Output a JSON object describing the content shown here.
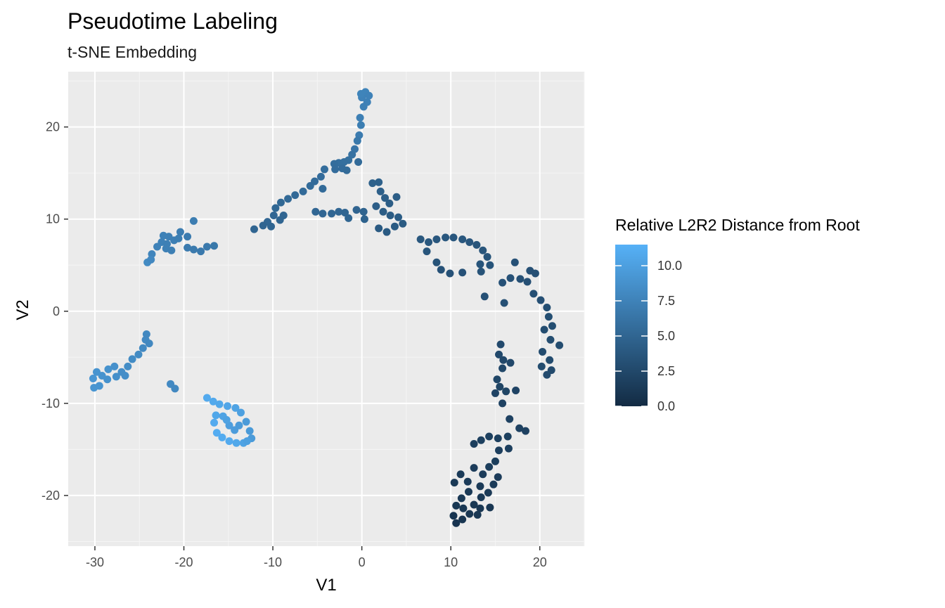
{
  "chart_data": {
    "type": "scatter",
    "title": "Pseudotime Labeling",
    "subtitle": "t-SNE Embedding",
    "xlabel": "V1",
    "ylabel": "V2",
    "xlim": [
      -33,
      25
    ],
    "ylim": [
      -25.5,
      26
    ],
    "x_ticks": [
      -30,
      -20,
      -10,
      0,
      10,
      20
    ],
    "y_ticks": [
      -20,
      -10,
      0,
      10,
      20
    ],
    "grid": true,
    "legend": {
      "title": "Relative L2R2 Distance from Root",
      "placement": "right",
      "ticks": [
        0.0,
        2.5,
        5.0,
        7.5,
        10.0
      ],
      "tick_labels": [
        "0.0",
        "2.5",
        "5.0",
        "7.5",
        "10.0"
      ],
      "range": [
        0,
        11.5
      ],
      "low_color": "#132b43",
      "high_color": "#56b1f7"
    },
    "colors": {
      "panel_background": "#ebebeb",
      "grid_major": "#ffffff",
      "grid_minor": "#f5f5f5"
    },
    "points": [
      {
        "x": 0.4,
        "y": 23.8,
        "c": 7.6
      },
      {
        "x": 0.0,
        "y": 23.2,
        "c": 7.5
      },
      {
        "x": 0.6,
        "y": 22.7,
        "c": 7.4
      },
      {
        "x": 0.2,
        "y": 22.2,
        "c": 7.3
      },
      {
        "x": -0.1,
        "y": 23.6,
        "c": 7.6
      },
      {
        "x": 0.8,
        "y": 23.4,
        "c": 7.5
      },
      {
        "x": -0.2,
        "y": 21.0,
        "c": 7.2
      },
      {
        "x": -0.1,
        "y": 20.2,
        "c": 7.1
      },
      {
        "x": -0.3,
        "y": 19.1,
        "c": 6.9
      },
      {
        "x": -0.5,
        "y": 18.5,
        "c": 6.6
      },
      {
        "x": -0.8,
        "y": 17.6,
        "c": 6.3
      },
      {
        "x": -1.1,
        "y": 17.0,
        "c": 6.1
      },
      {
        "x": -1.5,
        "y": 16.4,
        "c": 5.9
      },
      {
        "x": -2.0,
        "y": 16.2,
        "c": 5.8
      },
      {
        "x": -2.6,
        "y": 16.1,
        "c": 5.8
      },
      {
        "x": -3.1,
        "y": 16.0,
        "c": 5.7
      },
      {
        "x": -3.0,
        "y": 15.4,
        "c": 5.6
      },
      {
        "x": -2.2,
        "y": 15.5,
        "c": 5.6
      },
      {
        "x": -1.7,
        "y": 15.3,
        "c": 5.5
      },
      {
        "x": -0.4,
        "y": 16.2,
        "c": 5.4
      },
      {
        "x": -4.2,
        "y": 15.4,
        "c": 5.7
      },
      {
        "x": -4.6,
        "y": 14.6,
        "c": 5.6
      },
      {
        "x": -5.3,
        "y": 14.1,
        "c": 5.5
      },
      {
        "x": -5.8,
        "y": 13.6,
        "c": 5.5
      },
      {
        "x": -4.4,
        "y": 13.3,
        "c": 5.4
      },
      {
        "x": -6.6,
        "y": 13.0,
        "c": 5.4
      },
      {
        "x": -7.5,
        "y": 12.6,
        "c": 5.3
      },
      {
        "x": -8.3,
        "y": 12.2,
        "c": 5.3
      },
      {
        "x": -9.1,
        "y": 11.8,
        "c": 5.2
      },
      {
        "x": -9.7,
        "y": 11.2,
        "c": 5.2
      },
      {
        "x": -9.9,
        "y": 10.4,
        "c": 5.1
      },
      {
        "x": -10.6,
        "y": 9.7,
        "c": 5.1
      },
      {
        "x": -11.1,
        "y": 9.3,
        "c": 5.0
      },
      {
        "x": -12.1,
        "y": 8.9,
        "c": 5.0
      },
      {
        "x": -10.2,
        "y": 9.2,
        "c": 5.0
      },
      {
        "x": -9.2,
        "y": 9.9,
        "c": 5.0
      },
      {
        "x": -8.8,
        "y": 10.4,
        "c": 5.0
      },
      {
        "x": -5.2,
        "y": 10.8,
        "c": 5.1
      },
      {
        "x": -4.4,
        "y": 10.6,
        "c": 5.1
      },
      {
        "x": -3.4,
        "y": 10.6,
        "c": 5.1
      },
      {
        "x": -2.6,
        "y": 10.8,
        "c": 5.1
      },
      {
        "x": -1.9,
        "y": 10.7,
        "c": 5.0
      },
      {
        "x": -1.5,
        "y": 10.1,
        "c": 5.0
      },
      {
        "x": -0.6,
        "y": 11.0,
        "c": 4.9
      },
      {
        "x": 0.2,
        "y": 10.8,
        "c": 4.8
      },
      {
        "x": 0.3,
        "y": 10.0,
        "c": 4.7
      },
      {
        "x": 1.2,
        "y": 13.9,
        "c": 4.6
      },
      {
        "x": 1.9,
        "y": 14.0,
        "c": 4.6
      },
      {
        "x": 2.1,
        "y": 13.0,
        "c": 4.5
      },
      {
        "x": 2.6,
        "y": 12.3,
        "c": 4.4
      },
      {
        "x": 3.1,
        "y": 11.7,
        "c": 4.3
      },
      {
        "x": 3.9,
        "y": 12.4,
        "c": 4.3
      },
      {
        "x": 1.6,
        "y": 11.4,
        "c": 4.4
      },
      {
        "x": 2.4,
        "y": 10.8,
        "c": 4.3
      },
      {
        "x": 3.2,
        "y": 10.4,
        "c": 4.2
      },
      {
        "x": 4.1,
        "y": 10.2,
        "c": 4.2
      },
      {
        "x": 3.7,
        "y": 9.2,
        "c": 4.1
      },
      {
        "x": 4.6,
        "y": 9.5,
        "c": 4.1
      },
      {
        "x": 2.8,
        "y": 8.6,
        "c": 4.0
      },
      {
        "x": 1.9,
        "y": 9.0,
        "c": 4.0
      },
      {
        "x": 6.6,
        "y": 7.8,
        "c": 3.8
      },
      {
        "x": 7.5,
        "y": 7.5,
        "c": 3.8
      },
      {
        "x": 8.4,
        "y": 7.8,
        "c": 3.8
      },
      {
        "x": 9.4,
        "y": 8.0,
        "c": 3.8
      },
      {
        "x": 10.3,
        "y": 8.0,
        "c": 3.8
      },
      {
        "x": 11.3,
        "y": 7.8,
        "c": 3.8
      },
      {
        "x": 12.1,
        "y": 7.5,
        "c": 3.7
      },
      {
        "x": 12.9,
        "y": 7.2,
        "c": 3.6
      },
      {
        "x": 13.6,
        "y": 6.6,
        "c": 3.6
      },
      {
        "x": 14.1,
        "y": 5.9,
        "c": 3.5
      },
      {
        "x": 13.3,
        "y": 5.1,
        "c": 3.5
      },
      {
        "x": 14.4,
        "y": 5.0,
        "c": 3.5
      },
      {
        "x": 13.4,
        "y": 4.3,
        "c": 3.4
      },
      {
        "x": 8.4,
        "y": 5.3,
        "c": 3.4
      },
      {
        "x": 8.9,
        "y": 4.5,
        "c": 3.3
      },
      {
        "x": 9.9,
        "y": 4.1,
        "c": 3.3
      },
      {
        "x": 11.3,
        "y": 4.2,
        "c": 3.3
      },
      {
        "x": 7.3,
        "y": 6.5,
        "c": 3.6
      },
      {
        "x": 13.8,
        "y": 1.6,
        "c": 3.2
      },
      {
        "x": 16.0,
        "y": 0.9,
        "c": 3.2
      },
      {
        "x": 15.8,
        "y": 3.1,
        "c": 3.3
      },
      {
        "x": 16.7,
        "y": 3.6,
        "c": 3.3
      },
      {
        "x": 17.2,
        "y": 5.3,
        "c": 3.3
      },
      {
        "x": 17.8,
        "y": 3.5,
        "c": 3.2
      },
      {
        "x": 18.6,
        "y": 3.2,
        "c": 3.2
      },
      {
        "x": 18.9,
        "y": 4.4,
        "c": 3.2
      },
      {
        "x": 19.5,
        "y": 4.1,
        "c": 3.2
      },
      {
        "x": 19.3,
        "y": 1.9,
        "c": 3.1
      },
      {
        "x": 20.1,
        "y": 1.2,
        "c": 3.1
      },
      {
        "x": 20.8,
        "y": 0.4,
        "c": 3.0
      },
      {
        "x": 21.0,
        "y": -0.6,
        "c": 3.0
      },
      {
        "x": 21.4,
        "y": -1.6,
        "c": 3.0
      },
      {
        "x": 20.5,
        "y": -2.0,
        "c": 2.9
      },
      {
        "x": 21.2,
        "y": -3.1,
        "c": 2.9
      },
      {
        "x": 22.2,
        "y": -3.7,
        "c": 2.9
      },
      {
        "x": 20.3,
        "y": -4.4,
        "c": 2.8
      },
      {
        "x": 21.1,
        "y": -5.3,
        "c": 2.8
      },
      {
        "x": 20.2,
        "y": -6.0,
        "c": 2.8
      },
      {
        "x": 21.3,
        "y": -6.4,
        "c": 2.7
      },
      {
        "x": 20.8,
        "y": -6.9,
        "c": 2.7
      },
      {
        "x": 15.6,
        "y": -3.6,
        "c": 2.6
      },
      {
        "x": 15.4,
        "y": -4.7,
        "c": 2.6
      },
      {
        "x": 15.9,
        "y": -5.3,
        "c": 2.5
      },
      {
        "x": 16.7,
        "y": -5.6,
        "c": 2.5
      },
      {
        "x": 15.8,
        "y": -6.2,
        "c": 2.4
      },
      {
        "x": 15.2,
        "y": -7.4,
        "c": 2.3
      },
      {
        "x": 15.5,
        "y": -8.2,
        "c": 2.2
      },
      {
        "x": 16.2,
        "y": -8.7,
        "c": 2.2
      },
      {
        "x": 17.3,
        "y": -8.6,
        "c": 2.1
      },
      {
        "x": 15.0,
        "y": -8.9,
        "c": 2.1
      },
      {
        "x": 15.8,
        "y": -10.0,
        "c": 2.0
      },
      {
        "x": 16.6,
        "y": -11.7,
        "c": 1.9
      },
      {
        "x": 17.7,
        "y": -12.7,
        "c": 1.9
      },
      {
        "x": 18.4,
        "y": -13.0,
        "c": 1.9
      },
      {
        "x": 16.4,
        "y": -13.6,
        "c": 1.8
      },
      {
        "x": 15.3,
        "y": -13.8,
        "c": 1.8
      },
      {
        "x": 14.3,
        "y": -13.6,
        "c": 1.8
      },
      {
        "x": 13.4,
        "y": -14.0,
        "c": 1.8
      },
      {
        "x": 12.6,
        "y": -14.4,
        "c": 1.7
      },
      {
        "x": 16.5,
        "y": -14.9,
        "c": 1.7
      },
      {
        "x": 15.4,
        "y": -15.1,
        "c": 1.7
      },
      {
        "x": 15.0,
        "y": -16.3,
        "c": 1.6
      },
      {
        "x": 14.3,
        "y": -16.9,
        "c": 1.6
      },
      {
        "x": 13.6,
        "y": -17.7,
        "c": 1.5
      },
      {
        "x": 15.3,
        "y": -18.0,
        "c": 1.5
      },
      {
        "x": 14.8,
        "y": -18.8,
        "c": 1.4
      },
      {
        "x": 12.6,
        "y": -17.0,
        "c": 1.5
      },
      {
        "x": 11.1,
        "y": -17.7,
        "c": 1.4
      },
      {
        "x": 11.9,
        "y": -18.5,
        "c": 1.4
      },
      {
        "x": 10.4,
        "y": -18.6,
        "c": 1.3
      },
      {
        "x": 13.3,
        "y": -19.0,
        "c": 1.3
      },
      {
        "x": 12.0,
        "y": -19.6,
        "c": 1.3
      },
      {
        "x": 11.2,
        "y": -20.3,
        "c": 1.2
      },
      {
        "x": 14.2,
        "y": -19.7,
        "c": 1.3
      },
      {
        "x": 13.4,
        "y": -20.2,
        "c": 1.2
      },
      {
        "x": 10.6,
        "y": -21.1,
        "c": 1.1
      },
      {
        "x": 11.4,
        "y": -21.4,
        "c": 1.1
      },
      {
        "x": 12.6,
        "y": -21.0,
        "c": 1.1
      },
      {
        "x": 13.3,
        "y": -21.4,
        "c": 1.0
      },
      {
        "x": 12.1,
        "y": -22.0,
        "c": 1.0
      },
      {
        "x": 11.3,
        "y": -22.6,
        "c": 0.9
      },
      {
        "x": 10.6,
        "y": -23.0,
        "c": 0.8
      },
      {
        "x": 10.3,
        "y": -22.2,
        "c": 0.9
      },
      {
        "x": 14.4,
        "y": -21.3,
        "c": 1.0
      },
      {
        "x": 13.0,
        "y": -22.1,
        "c": 1.0
      },
      {
        "x": -21.7,
        "y": 8.1,
        "c": 7.3
      },
      {
        "x": -21.1,
        "y": 7.7,
        "c": 7.2
      },
      {
        "x": -20.6,
        "y": 7.9,
        "c": 7.1
      },
      {
        "x": -22.5,
        "y": 7.5,
        "c": 7.4
      },
      {
        "x": -23.0,
        "y": 7.0,
        "c": 7.5
      },
      {
        "x": -22.0,
        "y": 6.8,
        "c": 7.3
      },
      {
        "x": -21.4,
        "y": 6.6,
        "c": 7.2
      },
      {
        "x": -20.4,
        "y": 8.6,
        "c": 7.0
      },
      {
        "x": -19.6,
        "y": 8.1,
        "c": 6.9
      },
      {
        "x": -18.9,
        "y": 9.8,
        "c": 7.0
      },
      {
        "x": -19.6,
        "y": 6.9,
        "c": 6.9
      },
      {
        "x": -18.9,
        "y": 6.7,
        "c": 6.8
      },
      {
        "x": -18.1,
        "y": 6.5,
        "c": 6.7
      },
      {
        "x": -17.4,
        "y": 7.0,
        "c": 6.7
      },
      {
        "x": -16.6,
        "y": 7.1,
        "c": 6.6
      },
      {
        "x": -23.6,
        "y": 6.2,
        "c": 7.7
      },
      {
        "x": -24.1,
        "y": 5.3,
        "c": 8.2
      },
      {
        "x": -23.7,
        "y": 5.6,
        "c": 8.0
      },
      {
        "x": -22.3,
        "y": 8.2,
        "c": 7.4
      },
      {
        "x": -21.9,
        "y": 7.3,
        "c": 7.3
      },
      {
        "x": -30.2,
        "y": -7.3,
        "c": 9.2
      },
      {
        "x": -29.8,
        "y": -6.6,
        "c": 9.0
      },
      {
        "x": -29.2,
        "y": -7.0,
        "c": 8.9
      },
      {
        "x": -28.5,
        "y": -6.3,
        "c": 8.8
      },
      {
        "x": -27.8,
        "y": -6.0,
        "c": 8.7
      },
      {
        "x": -28.6,
        "y": -7.4,
        "c": 8.8
      },
      {
        "x": -29.5,
        "y": -8.1,
        "c": 9.0
      },
      {
        "x": -30.1,
        "y": -8.3,
        "c": 9.1
      },
      {
        "x": -27.6,
        "y": -7.1,
        "c": 8.6
      },
      {
        "x": -27.0,
        "y": -6.6,
        "c": 8.5
      },
      {
        "x": -26.3,
        "y": -6.0,
        "c": 8.4
      },
      {
        "x": -25.8,
        "y": -5.2,
        "c": 8.3
      },
      {
        "x": -25.1,
        "y": -4.7,
        "c": 8.2
      },
      {
        "x": -24.6,
        "y": -4.0,
        "c": 8.1
      },
      {
        "x": -24.3,
        "y": -3.1,
        "c": 8.1
      },
      {
        "x": -23.9,
        "y": -3.5,
        "c": 8.0
      },
      {
        "x": -24.2,
        "y": -2.5,
        "c": 8.0
      },
      {
        "x": -26.6,
        "y": -7.0,
        "c": 8.5
      },
      {
        "x": -21.5,
        "y": -7.9,
        "c": 8.1
      },
      {
        "x": -21.0,
        "y": -8.4,
        "c": 8.0
      },
      {
        "x": -17.4,
        "y": -9.4,
        "c": 10.9
      },
      {
        "x": -16.7,
        "y": -9.8,
        "c": 10.8
      },
      {
        "x": -16.0,
        "y": -10.1,
        "c": 10.7
      },
      {
        "x": -15.1,
        "y": -10.3,
        "c": 10.5
      },
      {
        "x": -14.2,
        "y": -10.5,
        "c": 10.3
      },
      {
        "x": -13.6,
        "y": -11.0,
        "c": 10.0
      },
      {
        "x": -13.0,
        "y": -12.0,
        "c": 9.6
      },
      {
        "x": -12.6,
        "y": -13.0,
        "c": 9.5
      },
      {
        "x": -12.4,
        "y": -13.8,
        "c": 9.6
      },
      {
        "x": -13.3,
        "y": -14.3,
        "c": 10.3
      },
      {
        "x": -14.1,
        "y": -14.3,
        "c": 10.7
      },
      {
        "x": -14.9,
        "y": -14.1,
        "c": 10.9
      },
      {
        "x": -15.7,
        "y": -13.7,
        "c": 11.0
      },
      {
        "x": -16.3,
        "y": -13.2,
        "c": 11.1
      },
      {
        "x": -16.6,
        "y": -12.1,
        "c": 10.9
      },
      {
        "x": -16.4,
        "y": -11.3,
        "c": 10.6
      },
      {
        "x": -15.6,
        "y": -11.4,
        "c": 10.3
      },
      {
        "x": -14.9,
        "y": -12.4,
        "c": 9.9
      },
      {
        "x": -14.3,
        "y": -12.9,
        "c": 9.7
      },
      {
        "x": -13.8,
        "y": -12.4,
        "c": 9.6
      },
      {
        "x": -15.2,
        "y": -11.8,
        "c": 10.1
      },
      {
        "x": -12.9,
        "y": -14.1,
        "c": 10.0
      }
    ]
  }
}
